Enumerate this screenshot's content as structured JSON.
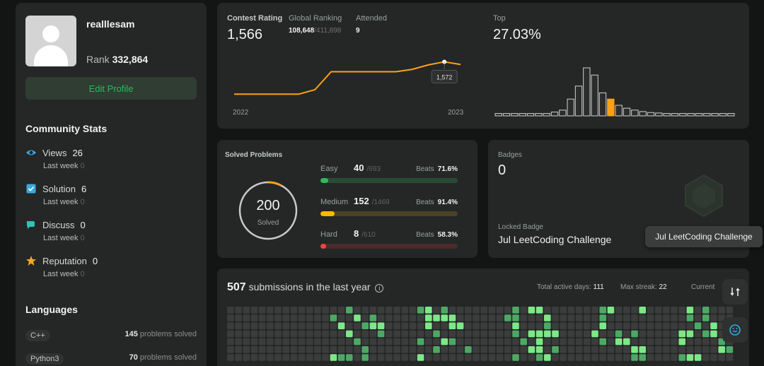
{
  "profile": {
    "username": "realllesam",
    "rank_label": "Rank",
    "rank_value": "332,864",
    "edit_label": "Edit Profile"
  },
  "community": {
    "title": "Community Stats",
    "items": [
      {
        "label": "Views",
        "value": "26",
        "sub_label": "Last week",
        "sub_value": "0",
        "icon": "eye-icon",
        "color": "#3ba7e0"
      },
      {
        "label": "Solution",
        "value": "6",
        "sub_label": "Last week",
        "sub_value": "0",
        "icon": "checkbox-icon",
        "color": "#3ba7e0"
      },
      {
        "label": "Discuss",
        "value": "0",
        "sub_label": "Last week",
        "sub_value": "0",
        "icon": "chat-icon",
        "color": "#2ec4b6"
      },
      {
        "label": "Reputation",
        "value": "0",
        "sub_label": "Last week",
        "sub_value": "0",
        "icon": "star-icon",
        "color": "#f5a623"
      }
    ]
  },
  "languages": {
    "title": "Languages",
    "items": [
      {
        "name": "C++",
        "count": "145",
        "suffix": "problems solved"
      },
      {
        "name": "Python3",
        "count": "70",
        "suffix": "problems solved"
      }
    ]
  },
  "contest": {
    "rating_label": "Contest Rating",
    "rating_value": "1,566",
    "global_label": "Global Ranking",
    "global_value": "108,648",
    "global_total": "/411,898",
    "attended_label": "Attended",
    "attended_value": "9",
    "top_label": "Top",
    "top_value": "27.03%",
    "tooltip_value": "1,572",
    "year_start": "2022",
    "year_end": "2023",
    "accent": "#ffa116",
    "line_points": [
      1500,
      1500,
      1500,
      1500,
      1500,
      1510,
      1550,
      1550,
      1550,
      1550,
      1550,
      1555,
      1565,
      1572,
      1566
    ],
    "histogram": [
      0.05,
      0.05,
      0.05,
      0.05,
      0.05,
      0.05,
      0.05,
      0.08,
      0.12,
      0.35,
      0.62,
      1.0,
      0.85,
      0.48,
      0.35,
      0.22,
      0.16,
      0.12,
      0.09,
      0.07,
      0.06,
      0.05,
      0.05,
      0.05,
      0.05,
      0.05,
      0.05,
      0.05,
      0.05,
      0.05
    ],
    "highlight_index": 14
  },
  "solved": {
    "title": "Solved Problems",
    "total": "200",
    "total_label": "Solved",
    "levels": [
      {
        "name": "Easy",
        "count": "40",
        "total": "/693",
        "beats_label": "Beats",
        "beats": "71.6%",
        "fill": 0.058,
        "color": "#2cbb5d",
        "track": "#2a4a38"
      },
      {
        "name": "Medium",
        "count": "152",
        "total": "/1469",
        "beats_label": "Beats",
        "beats": "91.4%",
        "fill": 0.103,
        "color": "#ffb800",
        "track": "#4a4128"
      },
      {
        "name": "Hard",
        "count": "8",
        "total": "/610",
        "beats_label": "Beats",
        "beats": "58.3%",
        "fill": 0.013,
        "color": "#ef4743",
        "track": "#4a2a2a"
      }
    ]
  },
  "badges": {
    "title": "Badges",
    "count": "0",
    "locked_label": "Locked Badge",
    "locked_name": "Jul LeetCoding Challenge",
    "tooltip": "Jul LeetCoding Challenge"
  },
  "submissions": {
    "count": "507",
    "label": "submissions in the last year",
    "active_label": "Total active days:",
    "active_value": "111",
    "streak_label": "Max streak:",
    "streak_value": "22",
    "current_label": "Current",
    "cells_on_color": "#7ee787",
    "cells_mid_color": "#4ea865",
    "cells_off_color": "#3a3d3c"
  }
}
